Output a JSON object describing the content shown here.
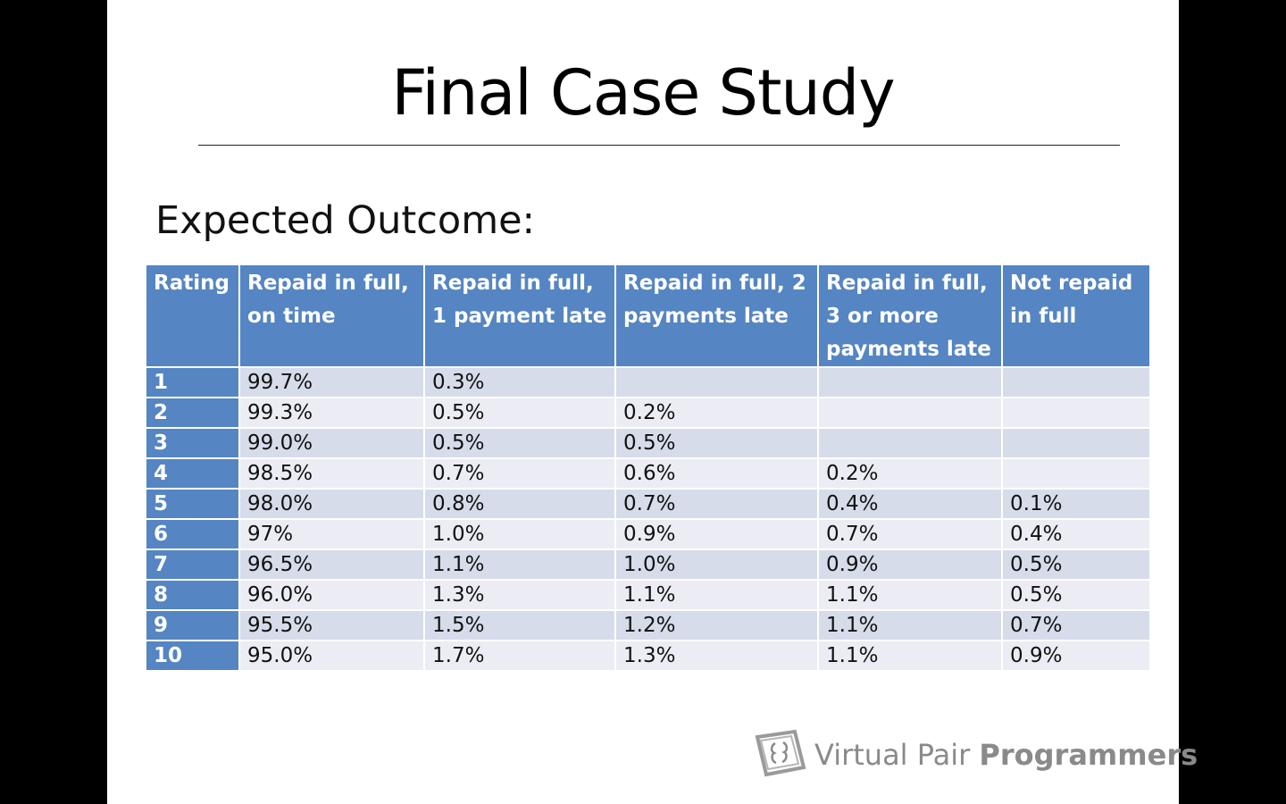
{
  "slide": {
    "title": "Final Case Study",
    "subtitle": "Expected Outcome:"
  },
  "table": {
    "headers": [
      "Rating",
      "Repaid in full, on time",
      "Repaid in full, 1 payment late",
      "Repaid in full, 2 payments late",
      "Repaid in full, 3 or more payments late",
      "Not repaid in full"
    ],
    "rows": [
      [
        "1",
        "99.7%",
        "0.3%",
        "",
        "",
        ""
      ],
      [
        "2",
        "99.3%",
        "0.5%",
        "0.2%",
        "",
        ""
      ],
      [
        "3",
        "99.0%",
        "0.5%",
        "0.5%",
        "",
        ""
      ],
      [
        "4",
        "98.5%",
        "0.7%",
        "0.6%",
        "0.2%",
        ""
      ],
      [
        "5",
        "98.0%",
        "0.8%",
        "0.7%",
        "0.4%",
        "0.1%"
      ],
      [
        "6",
        "97%",
        "1.0%",
        "0.9%",
        "0.7%",
        "0.4%"
      ],
      [
        "7",
        "96.5%",
        "1.1%",
        "1.0%",
        "0.9%",
        "0.5%"
      ],
      [
        "8",
        "96.0%",
        "1.3%",
        "1.1%",
        "1.1%",
        "0.5%"
      ],
      [
        "9",
        "95.5%",
        "1.5%",
        "1.2%",
        "1.1%",
        "0.7%"
      ],
      [
        "10",
        "95.0%",
        "1.7%",
        "1.3%",
        "1.1%",
        "0.9%"
      ]
    ]
  },
  "logo": {
    "text_light": "Virtual Pair ",
    "text_bold": "Programmers",
    "icon": "vpp-logo-icon"
  },
  "colors": {
    "header_blue": "#5585c2",
    "row_dark": "#d6dcea",
    "row_light": "#ecedf4",
    "logo_gray": "#8a8a8a"
  }
}
